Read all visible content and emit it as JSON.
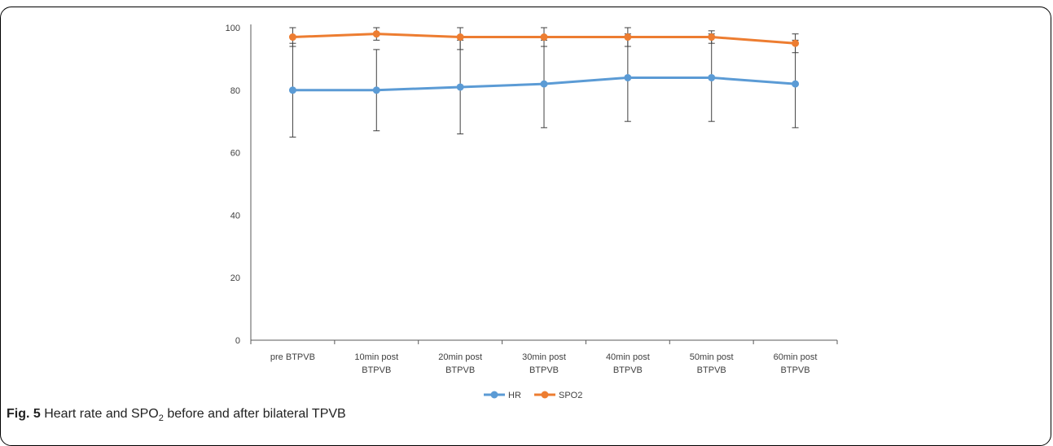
{
  "chart_data": {
    "type": "line",
    "title": "",
    "xlabel": "",
    "ylabel": "",
    "ylim": [
      0,
      100
    ],
    "yticks": [
      0,
      20,
      40,
      60,
      80,
      100
    ],
    "categories": [
      [
        "pre BTPVB"
      ],
      [
        "10min post",
        "BTPVB"
      ],
      [
        "20min post",
        "BTPVB"
      ],
      [
        "30min post",
        "BTPVB"
      ],
      [
        "40min post",
        "BTPVB"
      ],
      [
        "50min post",
        "BTPVB"
      ],
      [
        "60min post",
        "BTPVB"
      ]
    ],
    "series": [
      {
        "name": "HR",
        "color": "#5B9BD5",
        "values": [
          80,
          80,
          81,
          82,
          84,
          84,
          82
        ],
        "error_low": [
          65,
          67,
          66,
          68,
          70,
          70,
          68
        ],
        "error_high": [
          95,
          93,
          96,
          96,
          98,
          98,
          96
        ]
      },
      {
        "name": "SPO2",
        "color": "#ED7D31",
        "values": [
          97,
          98,
          97,
          97,
          97,
          97,
          95
        ],
        "error_low": [
          94,
          96,
          93,
          94,
          94,
          95,
          92
        ],
        "error_high": [
          100,
          100,
          100,
          100,
          100,
          99,
          98
        ]
      }
    ],
    "grid": false,
    "legend_position": "bottom-center"
  },
  "caption": {
    "label": "Fig. 5",
    "text_before": " Heart rate and SPO",
    "subscript": "2",
    "text_after": " before and after bilateral TPVB"
  }
}
